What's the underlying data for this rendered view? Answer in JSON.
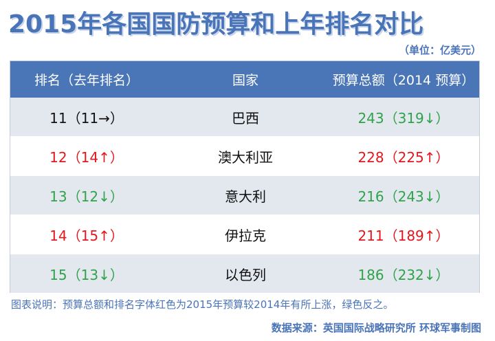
{
  "title": "2015年各国国防预算和上年排名对比",
  "unit": "（单位：亿美元）",
  "headers": [
    "排名（去年排名）",
    "国家",
    "预算总额（2014 预算）"
  ],
  "rows": [
    {
      "rank": "11（11→）",
      "country": "巴西",
      "budget": "243（319↓）",
      "status": "neutral-green"
    },
    {
      "rank": "12（14↑）",
      "country": "澳大利亚",
      "budget": "228（225↑）",
      "status": "up"
    },
    {
      "rank": "13（12↓）",
      "country": "意大利",
      "budget": "216（243↓）",
      "status": "down"
    },
    {
      "rank": "14（15↑）",
      "country": "伊拉克",
      "budget": "211（189↑）",
      "status": "up"
    },
    {
      "rank": "15（13↓）",
      "country": "以色列",
      "budget": "186（232↓）",
      "status": "down"
    }
  ],
  "note": "图表说明：预算总额和排名字体红色为2015年预算较2014年有所上涨，绿色反之。",
  "source": "数据来源：英国国际战略研究所 环球军事制图",
  "colors": {
    "title": "#4a74b8",
    "header_bg": "#4a76b8",
    "row_alt": "#e3e7ee",
    "up": "#e4161c",
    "down": "#2ea34a"
  }
}
